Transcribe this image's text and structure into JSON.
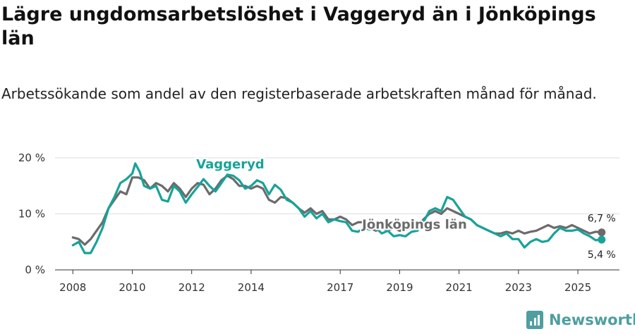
{
  "title": "Lägre ungdomsarbetslöshet i Vaggeryd än i Jönköpings län",
  "subtitle": "Arbetssökande som andel av den registerbaserade arbetskraften månad för månad.",
  "brand": {
    "name": "Newsworthy",
    "icon": "bar-chart-icon",
    "color": "#4f9ea0"
  },
  "chart_data": {
    "type": "line",
    "ylim": [
      0,
      20
    ],
    "yticks": [
      0,
      10,
      20
    ],
    "ytick_labels": [
      "0 %",
      "10 %",
      "20 %"
    ],
    "xlim": [
      2007.4,
      2026.4
    ],
    "xticks": [
      2008,
      2010,
      2012,
      2014,
      2017,
      2019,
      2021,
      2023,
      2025
    ],
    "xtick_labels": [
      "2008",
      "2010",
      "2012",
      "2014",
      "2017",
      "2019",
      "2021",
      "2023",
      "2025"
    ],
    "grid": "horizontal",
    "series": [
      {
        "name": "Vaggeryd",
        "color": "#17a398",
        "end_label": "5,4 %",
        "points": [
          [
            2008.0,
            4.4
          ],
          [
            2008.2,
            5.0
          ],
          [
            2008.4,
            3.0
          ],
          [
            2008.6,
            3.0
          ],
          [
            2008.8,
            5.0
          ],
          [
            2009.0,
            7.5
          ],
          [
            2009.2,
            11.0
          ],
          [
            2009.4,
            13.0
          ],
          [
            2009.6,
            15.5
          ],
          [
            2009.8,
            16.2
          ],
          [
            2010.0,
            17.2
          ],
          [
            2010.1,
            19.0
          ],
          [
            2010.25,
            17.5
          ],
          [
            2010.4,
            15.0
          ],
          [
            2010.6,
            14.5
          ],
          [
            2010.8,
            15.0
          ],
          [
            2011.0,
            12.5
          ],
          [
            2011.2,
            12.2
          ],
          [
            2011.4,
            15.0
          ],
          [
            2011.6,
            14.0
          ],
          [
            2011.8,
            12.0
          ],
          [
            2012.0,
            13.5
          ],
          [
            2012.2,
            14.8
          ],
          [
            2012.4,
            16.2
          ],
          [
            2012.6,
            15.0
          ],
          [
            2012.8,
            14.0
          ],
          [
            2013.0,
            15.5
          ],
          [
            2013.2,
            17.0
          ],
          [
            2013.4,
            16.8
          ],
          [
            2013.6,
            16.0
          ],
          [
            2013.8,
            14.5
          ],
          [
            2014.0,
            15.0
          ],
          [
            2014.2,
            16.0
          ],
          [
            2014.4,
            15.5
          ],
          [
            2014.6,
            13.5
          ],
          [
            2014.8,
            15.2
          ],
          [
            2015.0,
            14.3
          ],
          [
            2015.2,
            12.5
          ],
          [
            2015.4,
            12.0
          ],
          [
            2015.6,
            11.0
          ],
          [
            2015.8,
            9.5
          ],
          [
            2016.0,
            10.5
          ],
          [
            2016.2,
            9.2
          ],
          [
            2016.4,
            10.0
          ],
          [
            2016.6,
            8.5
          ],
          [
            2016.8,
            9.0
          ],
          [
            2017.0,
            8.7
          ],
          [
            2017.2,
            8.5
          ],
          [
            2017.4,
            7.0
          ],
          [
            2017.6,
            6.8
          ],
          [
            2017.8,
            7.5
          ],
          [
            2018.0,
            7.2
          ],
          [
            2018.2,
            7.5
          ],
          [
            2018.4,
            6.5
          ],
          [
            2018.6,
            7.0
          ],
          [
            2018.8,
            6.0
          ],
          [
            2019.0,
            6.2
          ],
          [
            2019.2,
            6.0
          ],
          [
            2019.4,
            6.8
          ],
          [
            2019.6,
            7.0
          ],
          [
            2019.8,
            8.5
          ],
          [
            2020.0,
            10.5
          ],
          [
            2020.2,
            11.0
          ],
          [
            2020.4,
            10.5
          ],
          [
            2020.6,
            13.0
          ],
          [
            2020.8,
            12.5
          ],
          [
            2021.0,
            11.0
          ],
          [
            2021.2,
            9.5
          ],
          [
            2021.4,
            9.0
          ],
          [
            2021.6,
            8.0
          ],
          [
            2021.8,
            7.5
          ],
          [
            2022.0,
            7.0
          ],
          [
            2022.2,
            6.5
          ],
          [
            2022.4,
            6.0
          ],
          [
            2022.6,
            6.5
          ],
          [
            2022.8,
            5.5
          ],
          [
            2023.0,
            5.5
          ],
          [
            2023.2,
            4.0
          ],
          [
            2023.4,
            5.0
          ],
          [
            2023.6,
            5.5
          ],
          [
            2023.8,
            5.0
          ],
          [
            2024.0,
            5.2
          ],
          [
            2024.2,
            6.5
          ],
          [
            2024.4,
            7.5
          ],
          [
            2024.6,
            7.0
          ],
          [
            2024.8,
            7.0
          ],
          [
            2025.0,
            7.2
          ],
          [
            2025.2,
            6.5
          ],
          [
            2025.4,
            6.0
          ],
          [
            2025.6,
            5.3
          ],
          [
            2025.8,
            5.4
          ]
        ]
      },
      {
        "name": "Jönköpings län",
        "color": "#6b6b6b",
        "end_label": "6,7 %",
        "points": [
          [
            2008.0,
            5.8
          ],
          [
            2008.2,
            5.5
          ],
          [
            2008.4,
            4.5
          ],
          [
            2008.6,
            5.5
          ],
          [
            2008.8,
            7.0
          ],
          [
            2009.0,
            8.5
          ],
          [
            2009.2,
            11.0
          ],
          [
            2009.4,
            12.5
          ],
          [
            2009.6,
            14.0
          ],
          [
            2009.8,
            13.5
          ],
          [
            2010.0,
            16.5
          ],
          [
            2010.2,
            16.5
          ],
          [
            2010.4,
            16.0
          ],
          [
            2010.6,
            14.5
          ],
          [
            2010.8,
            15.5
          ],
          [
            2011.0,
            15.0
          ],
          [
            2011.2,
            14.0
          ],
          [
            2011.4,
            15.5
          ],
          [
            2011.6,
            14.5
          ],
          [
            2011.8,
            13.0
          ],
          [
            2012.0,
            14.5
          ],
          [
            2012.2,
            15.5
          ],
          [
            2012.4,
            15.2
          ],
          [
            2012.6,
            13.5
          ],
          [
            2012.8,
            14.5
          ],
          [
            2013.0,
            16.0
          ],
          [
            2013.2,
            16.8
          ],
          [
            2013.4,
            16.2
          ],
          [
            2013.6,
            15.0
          ],
          [
            2013.8,
            15.0
          ],
          [
            2014.0,
            14.5
          ],
          [
            2014.2,
            15.0
          ],
          [
            2014.4,
            14.5
          ],
          [
            2014.6,
            12.5
          ],
          [
            2014.8,
            12.0
          ],
          [
            2015.0,
            13.0
          ],
          [
            2015.2,
            12.8
          ],
          [
            2015.4,
            12.0
          ],
          [
            2015.6,
            11.0
          ],
          [
            2015.8,
            10.2
          ],
          [
            2016.0,
            11.0
          ],
          [
            2016.2,
            10.0
          ],
          [
            2016.4,
            10.5
          ],
          [
            2016.6,
            9.0
          ],
          [
            2016.8,
            9.0
          ],
          [
            2017.0,
            9.5
          ],
          [
            2017.2,
            9.0
          ],
          [
            2017.4,
            8.0
          ],
          [
            2017.6,
            8.5
          ],
          [
            2017.8,
            8.5
          ],
          [
            2018.0,
            7.5
          ],
          [
            2018.2,
            7.0
          ],
          [
            2018.4,
            7.5
          ],
          [
            2018.6,
            7.0
          ],
          [
            2018.8,
            7.5
          ],
          [
            2019.0,
            7.0
          ],
          [
            2019.2,
            7.2
          ],
          [
            2019.4,
            7.5
          ],
          [
            2019.6,
            7.5
          ],
          [
            2019.8,
            9.0
          ],
          [
            2020.0,
            10.0
          ],
          [
            2020.2,
            10.5
          ],
          [
            2020.4,
            10.0
          ],
          [
            2020.6,
            11.0
          ],
          [
            2020.8,
            10.5
          ],
          [
            2021.0,
            10.0
          ],
          [
            2021.2,
            9.5
          ],
          [
            2021.4,
            9.0
          ],
          [
            2021.6,
            8.0
          ],
          [
            2021.8,
            7.5
          ],
          [
            2022.0,
            7.0
          ],
          [
            2022.2,
            6.5
          ],
          [
            2022.4,
            6.5
          ],
          [
            2022.6,
            6.8
          ],
          [
            2022.8,
            6.5
          ],
          [
            2023.0,
            7.0
          ],
          [
            2023.2,
            6.5
          ],
          [
            2023.4,
            6.8
          ],
          [
            2023.6,
            7.0
          ],
          [
            2023.8,
            7.5
          ],
          [
            2024.0,
            8.0
          ],
          [
            2024.2,
            7.5
          ],
          [
            2024.4,
            7.8
          ],
          [
            2024.6,
            7.5
          ],
          [
            2024.8,
            8.0
          ],
          [
            2025.0,
            7.5
          ],
          [
            2025.2,
            7.0
          ],
          [
            2025.4,
            6.5
          ],
          [
            2025.6,
            6.8
          ],
          [
            2025.8,
            6.7
          ]
        ]
      }
    ]
  }
}
